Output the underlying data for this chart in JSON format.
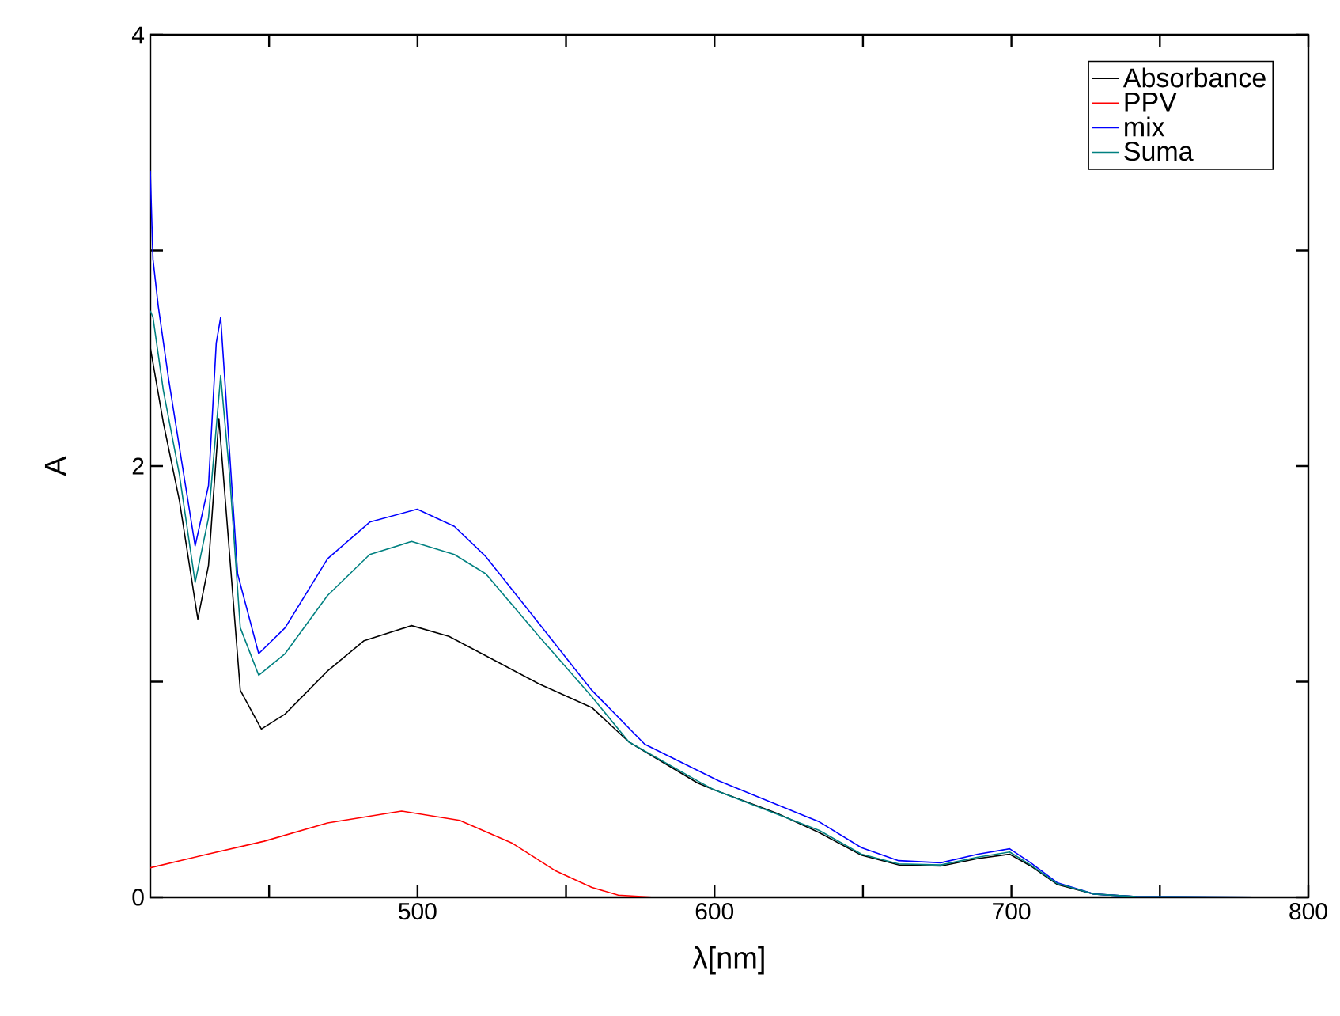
{
  "chart_data": {
    "type": "line",
    "xlabel": "λ[nm]",
    "ylabel": "A",
    "xlim": [
      410,
      800
    ],
    "ylim": [
      0,
      4
    ],
    "xticks": [
      {
        "value": 450,
        "label": null
      },
      500,
      {
        "value": 550,
        "label": null
      },
      600,
      {
        "value": 650,
        "label": null
      },
      700,
      {
        "value": 750,
        "label": null
      },
      800
    ],
    "yticks": [
      0,
      {
        "value": 1,
        "label": null
      },
      2,
      {
        "value": 3,
        "label": null
      },
      4
    ],
    "legend": "top right",
    "series": [
      {
        "name": "Absorbance",
        "color": "#000000",
        "x": [
          410,
          414.4,
          419.8,
          426,
          429.6,
          433.1,
          436.7,
          440.3,
          447.4,
          455.4,
          469.7,
          482,
          498,
          510.6,
          523,
          540.9,
          558.7,
          571.2,
          594.3,
          599.6,
          621,
          635.3,
          649.5,
          662,
          676.2,
          688.7,
          699.4,
          706.5,
          715.4,
          727.8,
          742,
          800
        ],
        "values": [
          2.55,
          2.2,
          1.84,
          1.29,
          1.54,
          2.22,
          1.59,
          0.96,
          0.78,
          0.85,
          1.05,
          1.19,
          1.26,
          1.21,
          1.12,
          0.99,
          0.88,
          0.72,
          0.53,
          0.5,
          0.39,
          0.3,
          0.195,
          0.15,
          0.145,
          0.18,
          0.2,
          0.145,
          0.06,
          0.015,
          0.003,
          0
        ]
      },
      {
        "name": "PPV",
        "color": "#ff0000",
        "x": [
          410,
          428.7,
          448.3,
          469.7,
          494.6,
          514.2,
          532,
          546.2,
          558.7,
          567.6,
          580,
          800
        ],
        "values": [
          0.137,
          0.198,
          0.26,
          0.345,
          0.4,
          0.357,
          0.25,
          0.125,
          0.046,
          0.01,
          0,
          0
        ]
      },
      {
        "name": "mix",
        "color": "#0000ff",
        "x": [
          410,
          410.9,
          412.7,
          416.2,
          420.7,
          425.1,
          429.6,
          432.2,
          433.7,
          435.8,
          439.4,
          446.5,
          455.4,
          469.7,
          483.9,
          499.9,
          512.4,
          523,
          540.9,
          558.7,
          576.5,
          601.4,
          635.3,
          649.5,
          662,
          676.2,
          688.7,
          699.4,
          706.5,
          715.4,
          727.8,
          742,
          800
        ],
        "values": [
          3.37,
          2.96,
          2.74,
          2.4,
          2.01,
          1.63,
          1.91,
          2.57,
          2.69,
          2.25,
          1.5,
          1.13,
          1.25,
          1.57,
          1.74,
          1.8,
          1.72,
          1.58,
          1.27,
          0.96,
          0.71,
          0.54,
          0.35,
          0.23,
          0.17,
          0.16,
          0.2,
          0.225,
          0.16,
          0.068,
          0.015,
          0.003,
          0
        ]
      },
      {
        "name": "Suma",
        "color": "#008080",
        "x": [
          410,
          410.9,
          414.4,
          419.8,
          425.1,
          429.6,
          433.7,
          436.7,
          440.3,
          446.5,
          455.4,
          469.7,
          483.9,
          498,
          512.4,
          523,
          540.9,
          558.7,
          571.2,
          594.3,
          599.6,
          635.3,
          649.5,
          662,
          676.2,
          688.7,
          699.4,
          706.5,
          715.4,
          727.8,
          742,
          800
        ],
        "values": [
          2.72,
          2.69,
          2.35,
          1.96,
          1.46,
          1.76,
          2.42,
          1.96,
          1.25,
          1.03,
          1.13,
          1.4,
          1.59,
          1.65,
          1.59,
          1.5,
          1.21,
          0.93,
          0.72,
          0.54,
          0.5,
          0.31,
          0.2,
          0.155,
          0.15,
          0.186,
          0.21,
          0.15,
          0.064,
          0.015,
          0.003,
          0
        ]
      }
    ]
  }
}
